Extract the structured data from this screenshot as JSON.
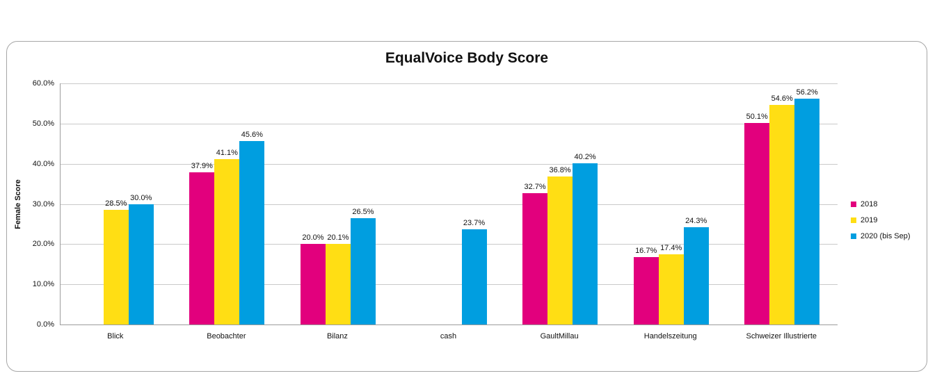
{
  "chart_data": {
    "type": "bar",
    "title": "EqualVoice Body Score",
    "ylabel": "Female Score",
    "xlabel": "",
    "ylim": [
      0,
      60
    ],
    "ytick_step": 10,
    "ytick_labels": [
      "60.0%",
      "50.0%",
      "40.0%",
      "30.0%",
      "20.0%",
      "10.0%",
      "0.0%"
    ],
    "grid": true,
    "legend_position": "right",
    "data_labels": true,
    "data_label_format": "one_decimal_percent",
    "categories": [
      "Blick",
      "Beobachter",
      "Bilanz",
      "cash",
      "GaultMillau",
      "Handelszeitung",
      "Schweizer Illustrierte"
    ],
    "series": [
      {
        "name": "2018",
        "color": "#E2007D",
        "values": [
          null,
          37.9,
          20.0,
          null,
          32.7,
          16.7,
          50.1
        ]
      },
      {
        "name": "2019",
        "color": "#FFDE14",
        "values": [
          28.5,
          41.1,
          20.1,
          null,
          36.8,
          17.4,
          54.6
        ]
      },
      {
        "name": "2020 (bis Sep)",
        "color": "#009EE0",
        "values": [
          30.0,
          45.6,
          26.5,
          23.7,
          40.2,
          24.3,
          56.2
        ]
      }
    ],
    "colors": {
      "grid": "#c9c9c9",
      "axis": "#9c9c9c",
      "card_border": "#a6a6a6",
      "text": "#111111",
      "background": "#ffffff"
    }
  }
}
